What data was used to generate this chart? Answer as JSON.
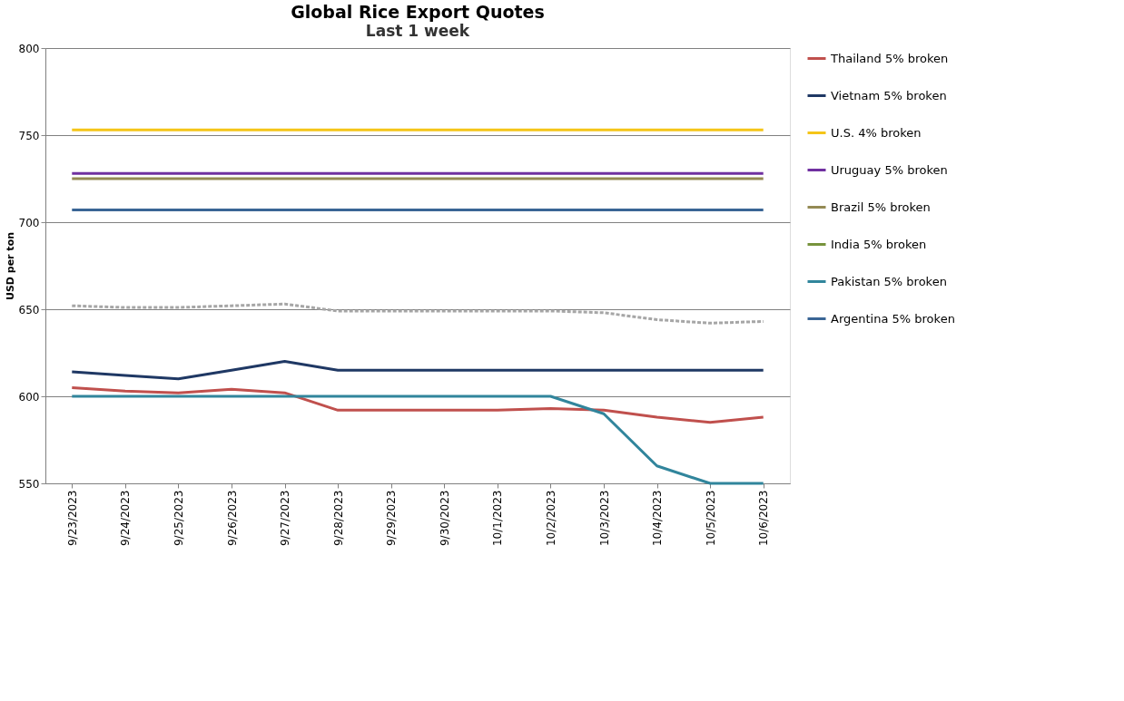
{
  "chart_data": {
    "type": "line",
    "title": "Global Rice Export Quotes",
    "subtitle": "Last 1 week",
    "ylabel": "USD per ton",
    "categories": [
      "9/23/2023",
      "9/24/2023",
      "9/25/2023",
      "9/26/2023",
      "9/27/2023",
      "9/28/2023",
      "9/29/2023",
      "9/30/2023",
      "10/1/2023",
      "10/2/2023",
      "10/3/2023",
      "10/4/2023",
      "10/5/2023",
      "10/6/2023"
    ],
    "series": [
      {
        "name": "Thailand 5% broken",
        "color": "#c0504d",
        "values": [
          605,
          603,
          602,
          604,
          602,
          592,
          592,
          592,
          592,
          593,
          592,
          588,
          585,
          588
        ]
      },
      {
        "name": "Vietnam 5% broken",
        "color": "#1f3864",
        "values": [
          614,
          612,
          610,
          615,
          620,
          615,
          615,
          615,
          615,
          615,
          615,
          615,
          615,
          615
        ]
      },
      {
        "name": "U.S. 4% broken",
        "color": "#f5c518",
        "values": [
          753,
          753,
          753,
          753,
          753,
          753,
          753,
          753,
          753,
          753,
          753,
          753,
          753,
          753
        ]
      },
      {
        "name": "Uruguay 5% broken",
        "color": "#7030a0",
        "values": [
          728,
          728,
          728,
          728,
          728,
          728,
          728,
          728,
          728,
          728,
          728,
          728,
          728,
          728
        ]
      },
      {
        "name": "Brazil 5% broken",
        "color": "#948a54",
        "values": [
          725,
          725,
          725,
          725,
          725,
          725,
          725,
          725,
          725,
          725,
          725,
          725,
          725,
          725
        ]
      },
      {
        "name": "India 5% broken",
        "color": "#77933c",
        "values": [
          null,
          null,
          null,
          null,
          null,
          null,
          null,
          null,
          null,
          null,
          null,
          null,
          null,
          null
        ]
      },
      {
        "name": "Pakistan 5% broken",
        "color": "#31859c",
        "values": [
          600,
          600,
          600,
          600,
          600,
          600,
          600,
          600,
          600,
          600,
          590,
          560,
          550,
          550
        ]
      },
      {
        "name": "Argentina 5% broken",
        "color": "#3a6595",
        "values": [
          707,
          707,
          707,
          707,
          707,
          707,
          707,
          707,
          707,
          707,
          707,
          707,
          707,
          707
        ]
      },
      {
        "color": "#a6a6a6",
        "line_style": "dashed",
        "values": [
          652,
          651,
          651,
          652,
          653,
          649,
          649,
          649,
          649,
          649,
          648,
          644,
          642,
          643
        ]
      }
    ],
    "ylim": [
      550,
      800
    ],
    "yticks": [
      550,
      600,
      650,
      700,
      750,
      800
    ],
    "grid": "y",
    "legend": "right",
    "marker": "none"
  }
}
